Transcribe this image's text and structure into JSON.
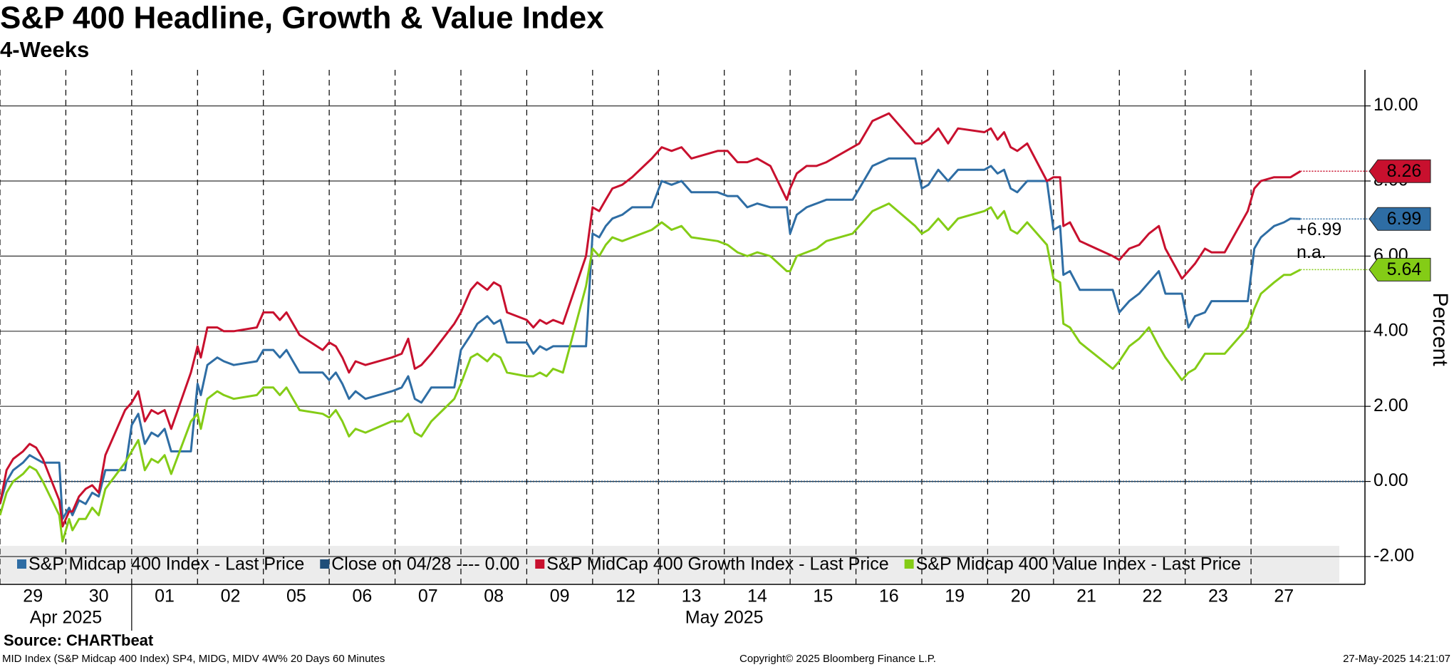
{
  "chart_data": {
    "type": "line",
    "title": "S&P 400 Headline, Growth & Value Index",
    "subtitle": "4-Weeks",
    "y_label": "Percent",
    "source": "Source: CHARTbeat",
    "footer": {
      "left": "MID Index (S&P Midcap 400 Index) SP4, MIDG, MIDV 4W% 20 Days 60 Minutes",
      "center": "Copyright© 2025 Bloomberg Finance L.P.",
      "right": "27-May-2025 14:21:07"
    },
    "x_group_labels": [
      "Apr 2025",
      "May 2025"
    ],
    "xlim": [
      0,
      20.73
    ],
    "ylim": [
      -2.74,
      10.96
    ],
    "xticks": [
      {
        "value": 0.5,
        "label": "29"
      },
      {
        "value": 1.5,
        "label": "30"
      },
      {
        "value": 2.5,
        "label": "01"
      },
      {
        "value": 3.5,
        "label": "02"
      },
      {
        "value": 4.5,
        "label": "05"
      },
      {
        "value": 5.5,
        "label": "06"
      },
      {
        "value": 6.5,
        "label": "07"
      },
      {
        "value": 7.5,
        "label": "08"
      },
      {
        "value": 8.5,
        "label": "09"
      },
      {
        "value": 9.5,
        "label": "12"
      },
      {
        "value": 10.5,
        "label": "13"
      },
      {
        "value": 11.5,
        "label": "14"
      },
      {
        "value": 12.5,
        "label": "15"
      },
      {
        "value": 13.5,
        "label": "16"
      },
      {
        "value": 14.5,
        "label": "19"
      },
      {
        "value": 15.5,
        "label": "20"
      },
      {
        "value": 16.5,
        "label": "21"
      },
      {
        "value": 17.5,
        "label": "22"
      },
      {
        "value": 18.5,
        "label": "23"
      },
      {
        "value": 19.5,
        "label": "27"
      }
    ],
    "yticks": [
      {
        "value": -2,
        "label": "-2.00"
      },
      {
        "value": 0,
        "label": "0.00"
      },
      {
        "value": 2,
        "label": "2.00"
      },
      {
        "value": 4,
        "label": "4.00"
      },
      {
        "value": 6,
        "label": "6.00"
      },
      {
        "value": 8,
        "label": "8.00"
      },
      {
        "value": 10,
        "label": "10.00"
      }
    ],
    "grid": true,
    "x": [
      0,
      0.1,
      0.2,
      0.35,
      0.45,
      0.55,
      0.65,
      0.9,
      0.95,
      1.05,
      1.1,
      1.2,
      1.3,
      1.4,
      1.5,
      1.6,
      1.9,
      2.0,
      2.1,
      2.2,
      2.3,
      2.4,
      2.5,
      2.6,
      2.9,
      3.0,
      3.05,
      3.15,
      3.3,
      3.4,
      3.55,
      3.9,
      4.0,
      4.15,
      4.25,
      4.35,
      4.45,
      4.55,
      4.9,
      5.0,
      5.1,
      5.2,
      5.3,
      5.4,
      5.55,
      5.95,
      6.1,
      6.2,
      6.3,
      6.4,
      6.55,
      6.9,
      7.0,
      7.15,
      7.25,
      7.4,
      7.5,
      7.6,
      7.7,
      8.0,
      8.1,
      8.2,
      8.3,
      8.4,
      8.55,
      8.9,
      9.0,
      9.1,
      9.2,
      9.3,
      9.45,
      9.6,
      9.9,
      10.05,
      10.2,
      10.35,
      10.5,
      10.9,
      11.05,
      11.2,
      11.35,
      11.5,
      11.7,
      11.95,
      12.0,
      12.1,
      12.25,
      12.4,
      12.55,
      12.95,
      13.05,
      13.25,
      13.5,
      13.9,
      14.0,
      14.1,
      14.25,
      14.4,
      14.55,
      14.95,
      15.05,
      15.15,
      15.25,
      15.35,
      15.45,
      15.6,
      15.9,
      16.0,
      16.1,
      16.15,
      16.25,
      16.4,
      16.9,
      17.0,
      17.15,
      17.3,
      17.45,
      17.6,
      17.7,
      17.95,
      18.05,
      18.15,
      18.3,
      18.4,
      18.6,
      18.95,
      19.05,
      19.15,
      19.35,
      19.5,
      19.6,
      19.75
    ],
    "series": [
      {
        "name": "S&P Midcap 400 Index - Last Price",
        "color": "#2e6da4",
        "last_label": "6.99",
        "values": [
          -0.6,
          0.0,
          0.3,
          0.5,
          0.7,
          0.6,
          0.5,
          0.5,
          -1.0,
          -0.7,
          -0.9,
          -0.5,
          -0.6,
          -0.3,
          -0.4,
          0.3,
          0.3,
          1.5,
          1.8,
          1.0,
          1.3,
          1.2,
          1.4,
          0.8,
          0.8,
          2.6,
          2.3,
          3.1,
          3.3,
          3.2,
          3.1,
          3.2,
          3.5,
          3.5,
          3.3,
          3.5,
          3.2,
          2.9,
          2.9,
          2.7,
          2.9,
          2.6,
          2.2,
          2.4,
          2.2,
          2.4,
          2.5,
          2.8,
          2.2,
          2.1,
          2.5,
          2.5,
          3.5,
          3.9,
          4.2,
          4.4,
          4.2,
          4.3,
          3.7,
          3.7,
          3.4,
          3.6,
          3.5,
          3.6,
          3.6,
          3.6,
          6.6,
          6.5,
          6.8,
          7.0,
          7.1,
          7.3,
          7.3,
          8.0,
          7.9,
          8.0,
          7.7,
          7.7,
          7.6,
          7.6,
          7.3,
          7.4,
          7.3,
          7.3,
          6.6,
          7.1,
          7.3,
          7.4,
          7.5,
          7.5,
          7.8,
          8.4,
          8.6,
          8.6,
          7.8,
          7.9,
          8.3,
          8.0,
          8.3,
          8.3,
          8.4,
          8.2,
          8.3,
          7.8,
          7.7,
          8.0,
          8.0,
          6.7,
          6.8,
          5.5,
          5.6,
          5.1,
          5.1,
          4.5,
          4.8,
          5.0,
          5.3,
          5.6,
          5.0,
          5.0,
          4.1,
          4.4,
          4.5,
          4.8,
          4.8,
          4.8,
          6.2,
          6.5,
          6.8,
          6.9,
          7.0,
          6.99
        ]
      },
      {
        "name": "S&P MidCap 400 Growth Index - Last Price",
        "color": "#c8102e",
        "last_label": "8.26",
        "values": [
          -0.6,
          0.3,
          0.6,
          0.8,
          1.0,
          0.9,
          0.6,
          -0.5,
          -1.2,
          -0.8,
          -0.8,
          -0.4,
          -0.2,
          -0.1,
          -0.3,
          0.7,
          1.9,
          2.1,
          2.4,
          1.6,
          1.9,
          1.8,
          1.9,
          1.4,
          2.9,
          3.6,
          3.3,
          4.1,
          4.1,
          4.0,
          4.0,
          4.1,
          4.5,
          4.5,
          4.3,
          4.5,
          4.2,
          3.9,
          3.5,
          3.7,
          3.6,
          3.3,
          2.9,
          3.2,
          3.1,
          3.3,
          3.4,
          3.8,
          3.0,
          3.1,
          3.4,
          4.2,
          4.5,
          5.1,
          5.3,
          5.1,
          5.3,
          5.2,
          4.5,
          4.3,
          4.1,
          4.3,
          4.2,
          4.3,
          4.2,
          6.0,
          7.3,
          7.2,
          7.5,
          7.8,
          7.9,
          8.1,
          8.6,
          8.9,
          8.8,
          8.9,
          8.6,
          8.8,
          8.8,
          8.5,
          8.5,
          8.6,
          8.4,
          7.5,
          7.8,
          8.2,
          8.4,
          8.4,
          8.5,
          8.9,
          9.0,
          9.6,
          9.8,
          9.0,
          9.0,
          9.1,
          9.4,
          9.0,
          9.4,
          9.3,
          9.4,
          9.1,
          9.3,
          8.9,
          8.8,
          9.0,
          8.0,
          8.1,
          8.1,
          6.8,
          6.9,
          6.4,
          6.0,
          5.9,
          6.2,
          6.3,
          6.6,
          6.8,
          6.2,
          5.4,
          5.6,
          5.8,
          6.2,
          6.1,
          6.1,
          7.2,
          7.8,
          8.0,
          8.1,
          8.1,
          8.1,
          8.26
        ]
      },
      {
        "name": "S&P Midcap 400 Value Index - Last Price",
        "color": "#84cc16",
        "last_label": "5.64",
        "values": [
          -0.9,
          -0.3,
          0.0,
          0.2,
          0.4,
          0.3,
          0.0,
          -0.9,
          -1.6,
          -1.0,
          -1.3,
          -1.0,
          -1.0,
          -0.7,
          -0.9,
          -0.2,
          0.5,
          0.8,
          1.1,
          0.3,
          0.6,
          0.5,
          0.7,
          0.2,
          1.6,
          1.8,
          1.4,
          2.2,
          2.4,
          2.3,
          2.2,
          2.3,
          2.5,
          2.5,
          2.3,
          2.5,
          2.2,
          1.9,
          1.8,
          1.7,
          1.9,
          1.6,
          1.2,
          1.4,
          1.3,
          1.6,
          1.6,
          1.8,
          1.3,
          1.2,
          1.6,
          2.2,
          2.6,
          3.3,
          3.4,
          3.2,
          3.4,
          3.3,
          2.9,
          2.8,
          2.8,
          2.9,
          2.8,
          3.0,
          2.9,
          5.2,
          6.2,
          6.0,
          6.3,
          6.5,
          6.4,
          6.5,
          6.7,
          6.9,
          6.7,
          6.8,
          6.5,
          6.4,
          6.3,
          6.1,
          6.0,
          6.1,
          6.0,
          5.6,
          5.6,
          6.0,
          6.1,
          6.2,
          6.4,
          6.6,
          6.8,
          7.2,
          7.4,
          6.8,
          6.6,
          6.7,
          7.0,
          6.7,
          7.0,
          7.2,
          7.3,
          7.0,
          7.2,
          6.7,
          6.6,
          6.9,
          6.3,
          5.4,
          5.3,
          4.2,
          4.1,
          3.7,
          3.0,
          3.2,
          3.6,
          3.8,
          4.1,
          3.6,
          3.3,
          2.7,
          2.9,
          3.0,
          3.4,
          3.4,
          3.4,
          4.1,
          4.6,
          5.0,
          5.3,
          5.5,
          5.5,
          5.64
        ]
      }
    ],
    "reference_line": {
      "name": "Close on 04/28 ---- 0.00",
      "color": "#1f4e79",
      "value": 0
    },
    "annotations": [
      "+6.99",
      "n.a."
    ]
  }
}
